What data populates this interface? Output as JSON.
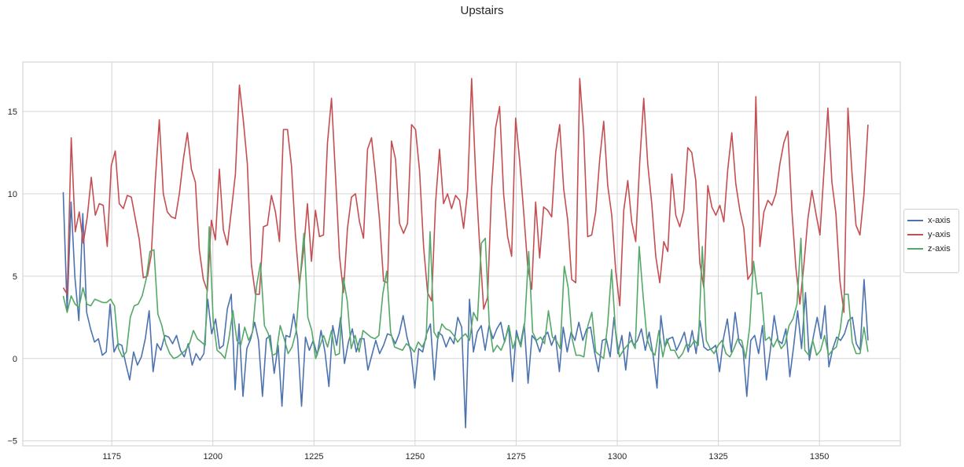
{
  "chart_data": {
    "type": "line",
    "title": "Upstairs",
    "xlabel": "",
    "ylabel": "",
    "xlim": [
      1153,
      1370
    ],
    "ylim": [
      -5.3,
      18
    ],
    "xticks": [
      1175,
      1200,
      1225,
      1250,
      1275,
      1300,
      1325,
      1350
    ],
    "yticks": [
      -5,
      0,
      5,
      10,
      15
    ],
    "grid": true,
    "legend_position": "right",
    "x_start": 1163,
    "x_end": 1362,
    "series": [
      {
        "name": "x-axis",
        "color": "#4c72b0",
        "values": [
          10.1,
          2.9,
          9.5,
          4.9,
          2.3,
          8.8,
          2.8,
          1.8,
          1.0,
          1.2,
          0.2,
          0.4,
          3.3,
          0.4,
          0.9,
          0.8,
          -0.3,
          -1.3,
          0.4,
          -0.4,
          0.1,
          1.2,
          2.9,
          -0.8,
          0.9,
          0.5,
          1.4,
          1.3,
          0.9,
          1.4,
          0.5,
          0.1,
          0.9,
          -0.4,
          0.3,
          -0.1,
          0.3,
          3.6,
          1.5,
          2.4,
          0.6,
          0.8,
          3.0,
          3.9,
          -1.9,
          2.1,
          -2.3,
          0.6,
          1.2,
          2.2,
          1.1,
          -2.3,
          1.2,
          1.4,
          -0.9,
          0.8,
          -2.9,
          1.4,
          1.3,
          2.7,
          1.2,
          -2.9,
          1.3,
          0.5,
          1.1,
          0.2,
          1.7,
          0.4,
          -1.7,
          2.0,
          0.8,
          2.5,
          -0.3,
          1.0,
          1.8,
          0.4,
          1.2,
          1.2,
          -0.7,
          0.2,
          1.1,
          0.3,
          0.8,
          1.5,
          1.4,
          0.9,
          1.5,
          2.6,
          1.3,
          0.4,
          -1.8,
          0.6,
          0.4,
          1.5,
          2.1,
          -1.3,
          1.6,
          1.4,
          0.7,
          1.3,
          0.9,
          2.5,
          1.9,
          -4.2,
          3.6,
          0.4,
          1.6,
          2.0,
          0.5,
          2.0,
          1.2,
          1.8,
          2.2,
          1.0,
          2.0,
          -1.4,
          1.7,
          0.8,
          2.1,
          -1.5,
          1.4,
          1.1,
          0.4,
          1.3,
          1.6,
          0.8,
          1.4,
          -0.8,
          1.9,
          0.4,
          1.6,
          1.1,
          2.2,
          1.1,
          1.8,
          1.9,
          0.4,
          -0.8,
          1.1,
          1.2,
          0.1,
          2.5,
          0.3,
          1.4,
          -0.7,
          1.6,
          0.8,
          1.1,
          1.8,
          0.5,
          1.6,
          0.2,
          -1.8,
          2.6,
          0.7,
          1.2,
          1.3,
          0.5,
          1.0,
          1.6,
          0.4,
          1.7,
          0.3,
          2.3,
          0.7,
          0.5,
          0.6,
          0.8,
          -0.8,
          1.2,
          2.4,
          0.4,
          2.8,
          1.0,
          0.6,
          -2.3,
          1.1,
          1.4,
          0.3,
          2.0,
          -1.3,
          0.5,
          2.6,
          1.1,
          0.9,
          1.8,
          -1.1,
          0.8,
          2.9,
          0.6,
          4.0,
          -0.1,
          1.3,
          2.5,
          1.2,
          3.2,
          -0.5,
          0.6,
          1.3,
          1.1,
          1.5,
          2.3,
          2.5,
          0.9,
          0.5,
          4.8,
          1.1
        ]
      },
      {
        "name": "y-axis",
        "color": "#c44e52",
        "values": [
          4.3,
          3.9,
          13.4,
          7.7,
          8.9,
          7.0,
          8.6,
          11.0,
          8.7,
          9.4,
          9.3,
          6.8,
          11.7,
          12.6,
          9.4,
          9.1,
          9.9,
          9.8,
          8.5,
          7.2,
          4.9,
          5.0,
          6.3,
          10.8,
          14.5,
          10.0,
          8.9,
          8.6,
          8.5,
          10.0,
          12.1,
          13.7,
          11.5,
          10.7,
          6.6,
          4.8,
          4.1,
          8.4,
          7.2,
          11.5,
          7.8,
          6.9,
          9.0,
          11.2,
          16.6,
          14.4,
          11.8,
          5.7,
          3.9,
          3.9,
          8.0,
          8.1,
          9.9,
          8.9,
          7.1,
          13.9,
          13.9,
          11.7,
          7.5,
          4.5,
          6.5,
          9.4,
          5.9,
          9.0,
          7.4,
          7.5,
          13.1,
          15.8,
          11.1,
          6.2,
          4.0,
          7.9,
          9.8,
          10.0,
          8.3,
          7.3,
          12.7,
          13.4,
          11.1,
          8.4,
          4.7,
          4.6,
          13.2,
          12.1,
          8.2,
          7.6,
          8.2,
          14.2,
          13.9,
          11.4,
          6.8,
          4.0,
          3.5,
          9.5,
          12.7,
          9.4,
          10.0,
          9.1,
          9.9,
          9.6,
          7.9,
          10.2,
          17.0,
          11.2,
          6.9,
          3.0,
          3.7,
          10.3,
          14.0,
          15.3,
          10.0,
          7.4,
          6.2,
          14.6,
          12.0,
          8.9,
          5.6,
          4.2,
          9.5,
          6.1,
          9.2,
          9.0,
          8.6,
          12.5,
          14.2,
          10.3,
          8.4,
          4.8,
          4.6,
          17.0,
          13.7,
          7.4,
          7.5,
          8.9,
          12.1,
          14.4,
          10.5,
          8.7,
          5.3,
          3.2,
          9.0,
          10.8,
          8.3,
          7.1,
          11.9,
          15.8,
          11.8,
          9.4,
          6.2,
          4.6,
          7.1,
          6.5,
          11.2,
          8.7,
          8.0,
          9.0,
          12.8,
          12.5,
          10.8,
          5.8,
          4.3,
          10.5,
          9.2,
          8.7,
          9.3,
          8.3,
          11.5,
          13.7,
          10.6,
          9.0,
          7.9,
          4.8,
          5.2,
          15.9,
          6.8,
          8.9,
          9.6,
          9.3,
          10.0,
          11.8,
          13.1,
          13.8,
          9.0,
          5.5,
          3.3,
          5.7,
          8.5,
          10.2,
          8.8,
          7.5,
          11.3,
          15.2,
          10.7,
          8.8,
          4.7,
          2.8,
          15.2,
          11.3,
          8.1,
          7.5,
          10.0,
          14.2
        ]
      },
      {
        "name": "z-axis",
        "color": "#55a868",
        "values": [
          3.8,
          2.8,
          3.8,
          3.3,
          3.1,
          4.3,
          3.3,
          3.2,
          3.6,
          3.5,
          3.4,
          3.4,
          3.6,
          3.2,
          0.6,
          0.1,
          0.4,
          2.5,
          3.2,
          3.3,
          3.8,
          4.8,
          6.5,
          6.6,
          2.7,
          2.0,
          0.9,
          0.3,
          0.0,
          0.1,
          0.3,
          0.5,
          0.9,
          1.7,
          1.2,
          1.0,
          0.8,
          8.0,
          2.3,
          0.5,
          0.3,
          0.0,
          1.2,
          2.9,
          1.1,
          0.8,
          1.9,
          1.1,
          1.6,
          4.4,
          5.8,
          2.0,
          1.5,
          0.2,
          0.3,
          2.0,
          1.2,
          0.3,
          0.7,
          1.6,
          4.7,
          7.6,
          2.5,
          1.7,
          0.0,
          0.7,
          1.4,
          0.7,
          1.7,
          0.2,
          0.3,
          4.9,
          3.5,
          0.6,
          1.4,
          0.4,
          1.7,
          1.5,
          1.3,
          1.2,
          1.4,
          3.9,
          5.3,
          1.6,
          0.7,
          0.6,
          0.5,
          0.9,
          0.7,
          0.4,
          1.0,
          0.7,
          1.2,
          7.7,
          1.6,
          1.2,
          2.1,
          1.8,
          1.7,
          1.4,
          1.0,
          1.3,
          1.5,
          1.1,
          2.8,
          2.3,
          7.0,
          7.3,
          2.1,
          0.4,
          0.8,
          0.5,
          1.1,
          2.0,
          0.6,
          1.4,
          0.7,
          2.2,
          6.5,
          1.6,
          1.1,
          1.3,
          0.9,
          2.9,
          1.3,
          1.1,
          0.6,
          5.6,
          4.3,
          1.2,
          0.2,
          0.2,
          0.1,
          2.0,
          2.8,
          0.4,
          0.2,
          0.0,
          2.0,
          5.4,
          1.7,
          0.1,
          0.5,
          0.8,
          1.1,
          0.6,
          6.8,
          3.8,
          1.2,
          0.5,
          0.2,
          1.7,
          0.1,
          1.2,
          0.5,
          0.5,
          0.0,
          0.3,
          0.9,
          0.7,
          1.1,
          0.8,
          6.8,
          1.1,
          0.6,
          0.3,
          0.8,
          1.1,
          0.3,
          0.1,
          0.6,
          1.2,
          1.1,
          0.0,
          1.9,
          5.9,
          3.9,
          4.0,
          1.1,
          1.3,
          0.7,
          1.2,
          0.6,
          0.9,
          2.0,
          2.4,
          3.3,
          7.3,
          0.5,
          0.2,
          1.1,
          0.2,
          0.5,
          1.4,
          0.2,
          0.5,
          0.7,
          1.8,
          3.9,
          3.9,
          1.0,
          0.3,
          0.3,
          1.9,
          0.4
        ]
      }
    ]
  }
}
